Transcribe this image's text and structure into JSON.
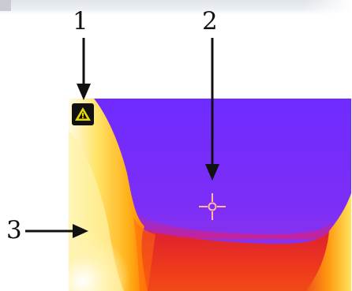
{
  "callouts": [
    {
      "number": "1",
      "target": "warning-icon"
    },
    {
      "number": "2",
      "target": "crosshair"
    },
    {
      "number": "3",
      "target": "hot-region"
    }
  ],
  "thermal_image": {
    "palette": "iron",
    "colors": {
      "cold": "#7a2cff",
      "cool": "#9b32e6",
      "warm_magenta": "#d6208f",
      "warm_red": "#e6242a",
      "hot_orange": "#ff8a00",
      "hotter_yellow": "#ffd21a",
      "hottest_white": "#fffbe6",
      "crosshair": "#ffb8a0",
      "badge_symbol": "#e8d800"
    }
  },
  "warning_badge": {
    "icon": "warning-triangle-icon"
  },
  "crosshair": {
    "icon": "crosshair-icon"
  }
}
